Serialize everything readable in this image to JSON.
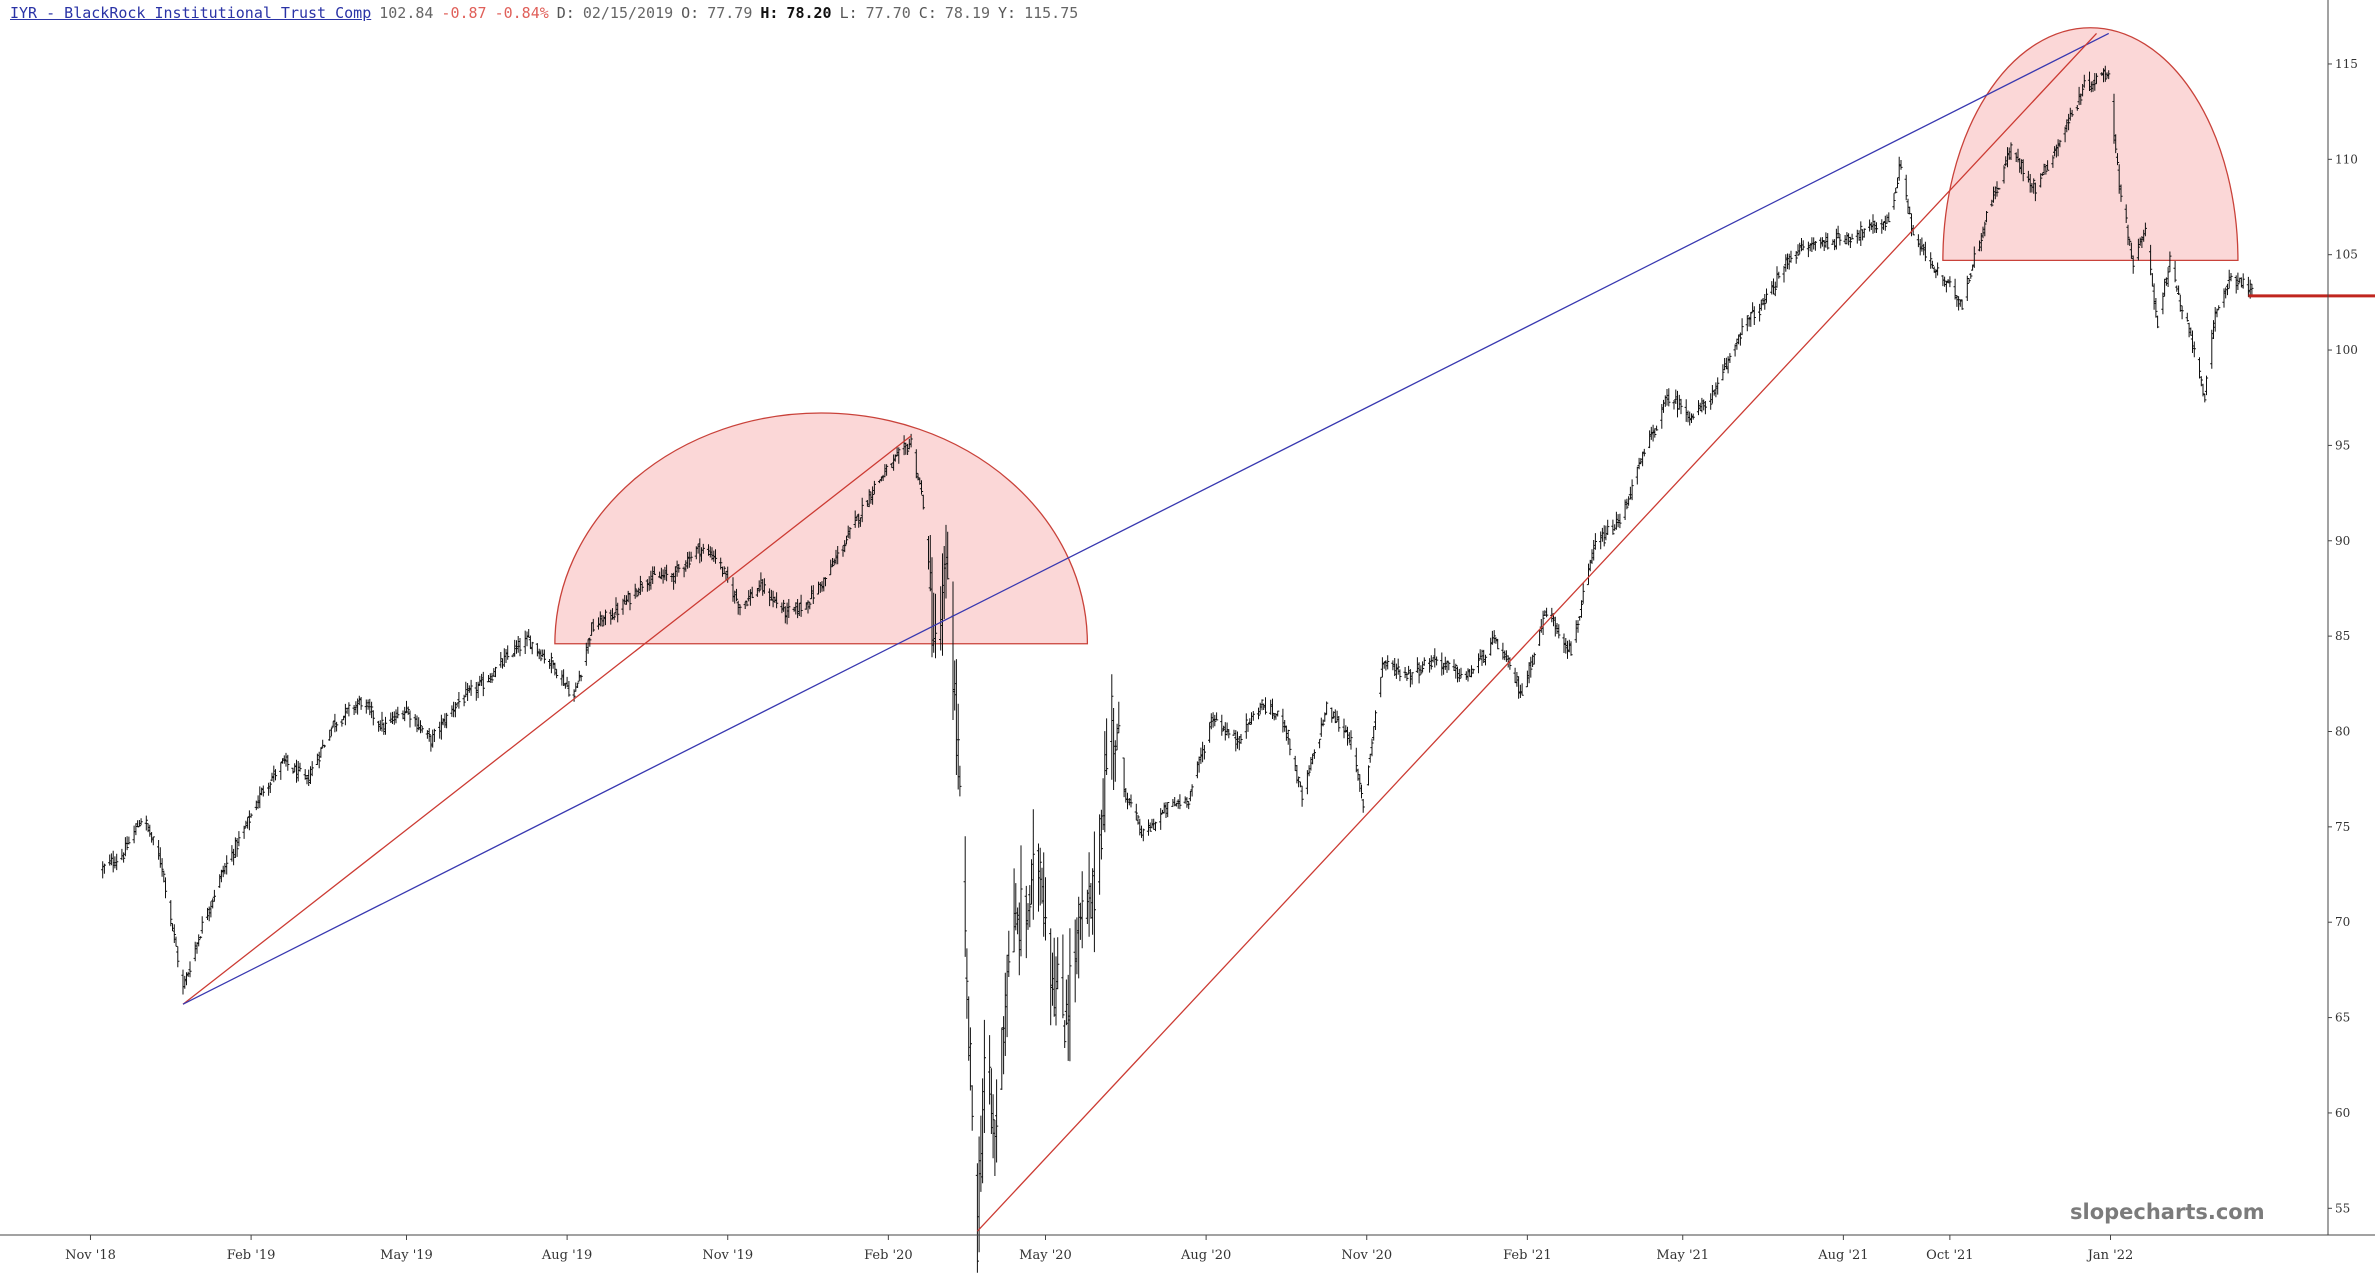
{
  "header": {
    "title": "IYR - BlackRock Institutional Trust Comp",
    "last": "102.84",
    "change": "-0.87",
    "change_pct": "-0.84%",
    "date_label": "D:",
    "date": "02/15/2019",
    "open_label": "O:",
    "open": "77.79",
    "high_label": "H:",
    "high": "78.20",
    "low_label": "L:",
    "low": "77.70",
    "close_label": "C:",
    "close": "78.19",
    "y_label": "Y:",
    "y": "115.75"
  },
  "watermark": "slopecharts.com",
  "colors": {
    "bars": "#111111",
    "trendline_red": "#cc3b33",
    "trendline_blue": "#3838b0",
    "dome_fill": "#fbd7d7",
    "dome_stroke": "#c9423a",
    "price_line": "#c0261f",
    "axis": "#444444"
  },
  "chart_data": {
    "type": "ohlc",
    "title": "IYR - BlackRock Institutional Trust Comp",
    "x_range": [
      "2018-10-26",
      "2022-05-01"
    ],
    "y_range": [
      53.6,
      117.2
    ],
    "x_ticks": [
      {
        "label": "Nov '18",
        "date": "2018-11-01"
      },
      {
        "label": "Feb '19",
        "date": "2019-02-01"
      },
      {
        "label": "May '19",
        "date": "2019-05-01"
      },
      {
        "label": "Aug '19",
        "date": "2019-08-01"
      },
      {
        "label": "Nov '19",
        "date": "2019-11-01"
      },
      {
        "label": "Feb '20",
        "date": "2020-02-01"
      },
      {
        "label": "May '20",
        "date": "2020-05-01"
      },
      {
        "label": "Aug '20",
        "date": "2020-08-01"
      },
      {
        "label": "Nov '20",
        "date": "2020-11-01"
      },
      {
        "label": "Feb '21",
        "date": "2021-02-01"
      },
      {
        "label": "May '21",
        "date": "2021-05-01"
      },
      {
        "label": "Aug '21",
        "date": "2021-08-01"
      },
      {
        "label": "Oct '21",
        "date": "2021-10-01"
      },
      {
        "label": "Jan '22",
        "date": "2022-01-01"
      }
    ],
    "y_ticks": [
      55,
      60,
      65,
      70,
      75,
      80,
      85,
      90,
      95,
      100,
      105,
      110,
      115
    ],
    "price_path": [
      [
        "2018-11-08",
        72.8
      ],
      [
        "2018-11-20",
        73.6
      ],
      [
        "2018-12-01",
        75.6
      ],
      [
        "2018-12-12",
        73.0
      ],
      [
        "2018-12-24",
        66.5
      ],
      [
        "2019-01-04",
        69.8
      ],
      [
        "2019-01-15",
        72.5
      ],
      [
        "2019-01-28",
        74.8
      ],
      [
        "2019-02-08",
        77.0
      ],
      [
        "2019-02-20",
        78.4
      ],
      [
        "2019-03-05",
        77.4
      ],
      [
        "2019-03-20",
        80.4
      ],
      [
        "2019-04-05",
        81.6
      ],
      [
        "2019-04-18",
        80.2
      ],
      [
        "2019-05-01",
        81.2
      ],
      [
        "2019-05-15",
        79.5
      ],
      [
        "2019-05-30",
        81.5
      ],
      [
        "2019-06-15",
        82.6
      ],
      [
        "2019-07-01",
        84.2
      ],
      [
        "2019-07-10",
        84.8
      ],
      [
        "2019-07-25",
        83.4
      ],
      [
        "2019-08-05",
        81.8
      ],
      [
        "2019-08-15",
        85.4
      ],
      [
        "2019-09-01",
        86.5
      ],
      [
        "2019-09-15",
        88.0
      ],
      [
        "2019-10-01",
        88.2
      ],
      [
        "2019-10-15",
        89.6
      ],
      [
        "2019-10-25",
        89.2
      ],
      [
        "2019-11-08",
        86.6
      ],
      [
        "2019-11-20",
        87.6
      ],
      [
        "2019-12-05",
        86.2
      ],
      [
        "2019-12-15",
        86.6
      ],
      [
        "2019-12-27",
        88.0
      ],
      [
        "2020-01-10",
        90.4
      ],
      [
        "2020-01-25",
        93.0
      ],
      [
        "2020-02-05",
        94.2
      ],
      [
        "2020-02-14",
        95.2
      ],
      [
        "2020-02-21",
        92.0
      ],
      [
        "2020-02-28",
        84.0
      ],
      [
        "2020-03-06",
        88.5
      ],
      [
        "2020-03-12",
        78.5
      ],
      [
        "2020-03-16",
        68.0
      ],
      [
        "2020-03-23",
        53.8
      ],
      [
        "2020-03-27",
        62.5
      ],
      [
        "2020-04-02",
        58.5
      ],
      [
        "2020-04-10",
        68.8
      ],
      [
        "2020-04-20",
        70.5
      ],
      [
        "2020-04-28",
        73.4
      ],
      [
        "2020-05-05",
        67.2
      ],
      [
        "2020-05-12",
        65.0
      ],
      [
        "2020-05-20",
        69.5
      ],
      [
        "2020-05-28",
        71.0
      ],
      [
        "2020-06-08",
        81.0
      ],
      [
        "2020-06-15",
        77.0
      ],
      [
        "2020-06-26",
        74.5
      ],
      [
        "2020-07-10",
        76.0
      ],
      [
        "2020-07-22",
        76.5
      ],
      [
        "2020-08-05",
        80.8
      ],
      [
        "2020-08-18",
        79.5
      ],
      [
        "2020-09-02",
        81.4
      ],
      [
        "2020-09-15",
        80.5
      ],
      [
        "2020-09-25",
        76.5
      ],
      [
        "2020-10-09",
        81.2
      ],
      [
        "2020-10-22",
        79.8
      ],
      [
        "2020-10-30",
        76.2
      ],
      [
        "2020-11-10",
        83.6
      ],
      [
        "2020-11-25",
        83.0
      ],
      [
        "2020-12-10",
        83.8
      ],
      [
        "2020-12-28",
        82.8
      ],
      [
        "2021-01-14",
        84.8
      ],
      [
        "2021-01-29",
        82.0
      ],
      [
        "2021-02-12",
        86.4
      ],
      [
        "2021-02-26",
        84.2
      ],
      [
        "2021-03-12",
        89.8
      ],
      [
        "2021-03-26",
        91.0
      ],
      [
        "2021-04-09",
        94.6
      ],
      [
        "2021-04-23",
        97.6
      ],
      [
        "2021-05-07",
        96.5
      ],
      [
        "2021-05-20",
        97.8
      ],
      [
        "2021-06-04",
        101.2
      ],
      [
        "2021-06-18",
        102.6
      ],
      [
        "2021-07-02",
        105.0
      ],
      [
        "2021-07-16",
        105.6
      ],
      [
        "2021-07-30",
        105.8
      ],
      [
        "2021-08-13",
        106.2
      ],
      [
        "2021-08-27",
        106.8
      ],
      [
        "2021-09-03",
        109.8
      ],
      [
        "2021-09-10",
        106.0
      ],
      [
        "2021-09-24",
        104.0
      ],
      [
        "2021-10-08",
        102.5
      ],
      [
        "2021-10-22",
        107.0
      ],
      [
        "2021-11-05",
        110.5
      ],
      [
        "2021-11-19",
        108.5
      ],
      [
        "2021-12-03",
        111.0
      ],
      [
        "2021-12-17",
        113.8
      ],
      [
        "2021-12-31",
        114.6
      ],
      [
        "2022-01-05",
        109.5
      ],
      [
        "2022-01-14",
        104.5
      ],
      [
        "2022-01-21",
        106.2
      ],
      [
        "2022-01-28",
        101.5
      ],
      [
        "2022-02-04",
        104.6
      ],
      [
        "2022-02-11",
        102.0
      ],
      [
        "2022-02-18",
        100.2
      ],
      [
        "2022-02-24",
        97.6
      ],
      [
        "2022-03-02",
        101.6
      ],
      [
        "2022-03-10",
        103.8
      ],
      [
        "2022-03-18",
        103.6
      ],
      [
        "2022-03-23",
        103.0
      ]
    ],
    "trendlines": [
      {
        "color": "red",
        "from": [
          "2018-12-24",
          65.7
        ],
        "to": [
          "2020-02-14",
          95.5
        ]
      },
      {
        "color": "blue",
        "from": [
          "2018-12-24",
          65.7
        ],
        "to": [
          "2021-12-31",
          116.6
        ]
      },
      {
        "color": "red",
        "from": [
          "2020-03-23",
          53.8
        ],
        "to": [
          "2021-12-24",
          116.6
        ]
      }
    ],
    "domes": [
      {
        "base": 84.6,
        "from": "2019-07-25",
        "to": "2020-05-25",
        "peak": 96.7
      },
      {
        "base": 104.7,
        "from": "2021-09-27",
        "to": "2022-03-15",
        "peak": 116.9
      }
    ],
    "price_line": {
      "value": 102.84,
      "from": "2022-03-21"
    }
  }
}
